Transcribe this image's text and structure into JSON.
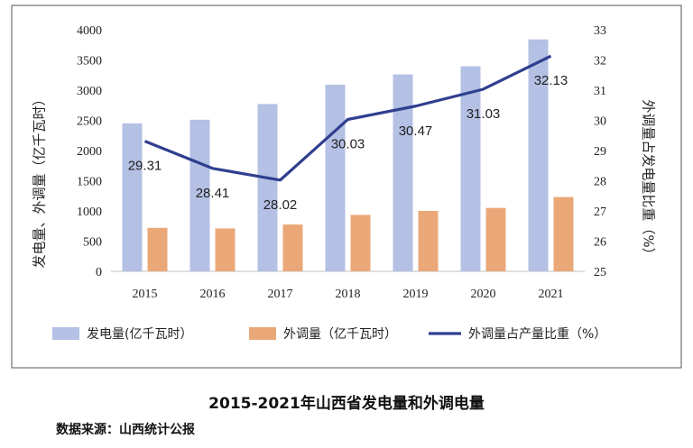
{
  "chart_data": {
    "type": "bar",
    "categories": [
      "2015",
      "2016",
      "2017",
      "2018",
      "2019",
      "2020",
      "2021"
    ],
    "series": [
      {
        "name": "发电量(亿千瓦时）",
        "type": "bar",
        "axis": "left",
        "color": "#b4c0e4",
        "values": [
          2450,
          2510,
          2770,
          3090,
          3260,
          3395,
          3840
        ]
      },
      {
        "name": "外调量（亿千瓦时）",
        "type": "bar",
        "axis": "left",
        "color": "#eaa878",
        "values": [
          720,
          710,
          775,
          935,
          1000,
          1050,
          1230
        ]
      },
      {
        "name": "外调量占产量比重（%）",
        "type": "line",
        "axis": "right",
        "color": "#2f3f8f",
        "values": [
          29.31,
          28.41,
          28.02,
          30.03,
          30.47,
          31.03,
          32.13
        ],
        "labels": [
          "29.31",
          "28.41",
          "28.02",
          "30.03",
          "30.47",
          "31.03",
          "32.13"
        ]
      }
    ],
    "ylabel": "发电量、外调量（亿千瓦时）",
    "ylabel_right": "外调量占发电量比重（%）",
    "ylim": [
      0,
      4000
    ],
    "ylim_right": [
      25,
      33
    ],
    "yticks": [
      "0",
      "500",
      "1000",
      "1500",
      "2000",
      "2500",
      "3000",
      "3500",
      "4000"
    ],
    "yticks_right": [
      "25",
      "26",
      "27",
      "28",
      "29",
      "30",
      "31",
      "32",
      "33"
    ],
    "legend": "bottom",
    "grid": false
  },
  "caption": {
    "title": "2015-2021年山西省发电量和外调电量",
    "source": "数据来源：山西统计公报"
  }
}
